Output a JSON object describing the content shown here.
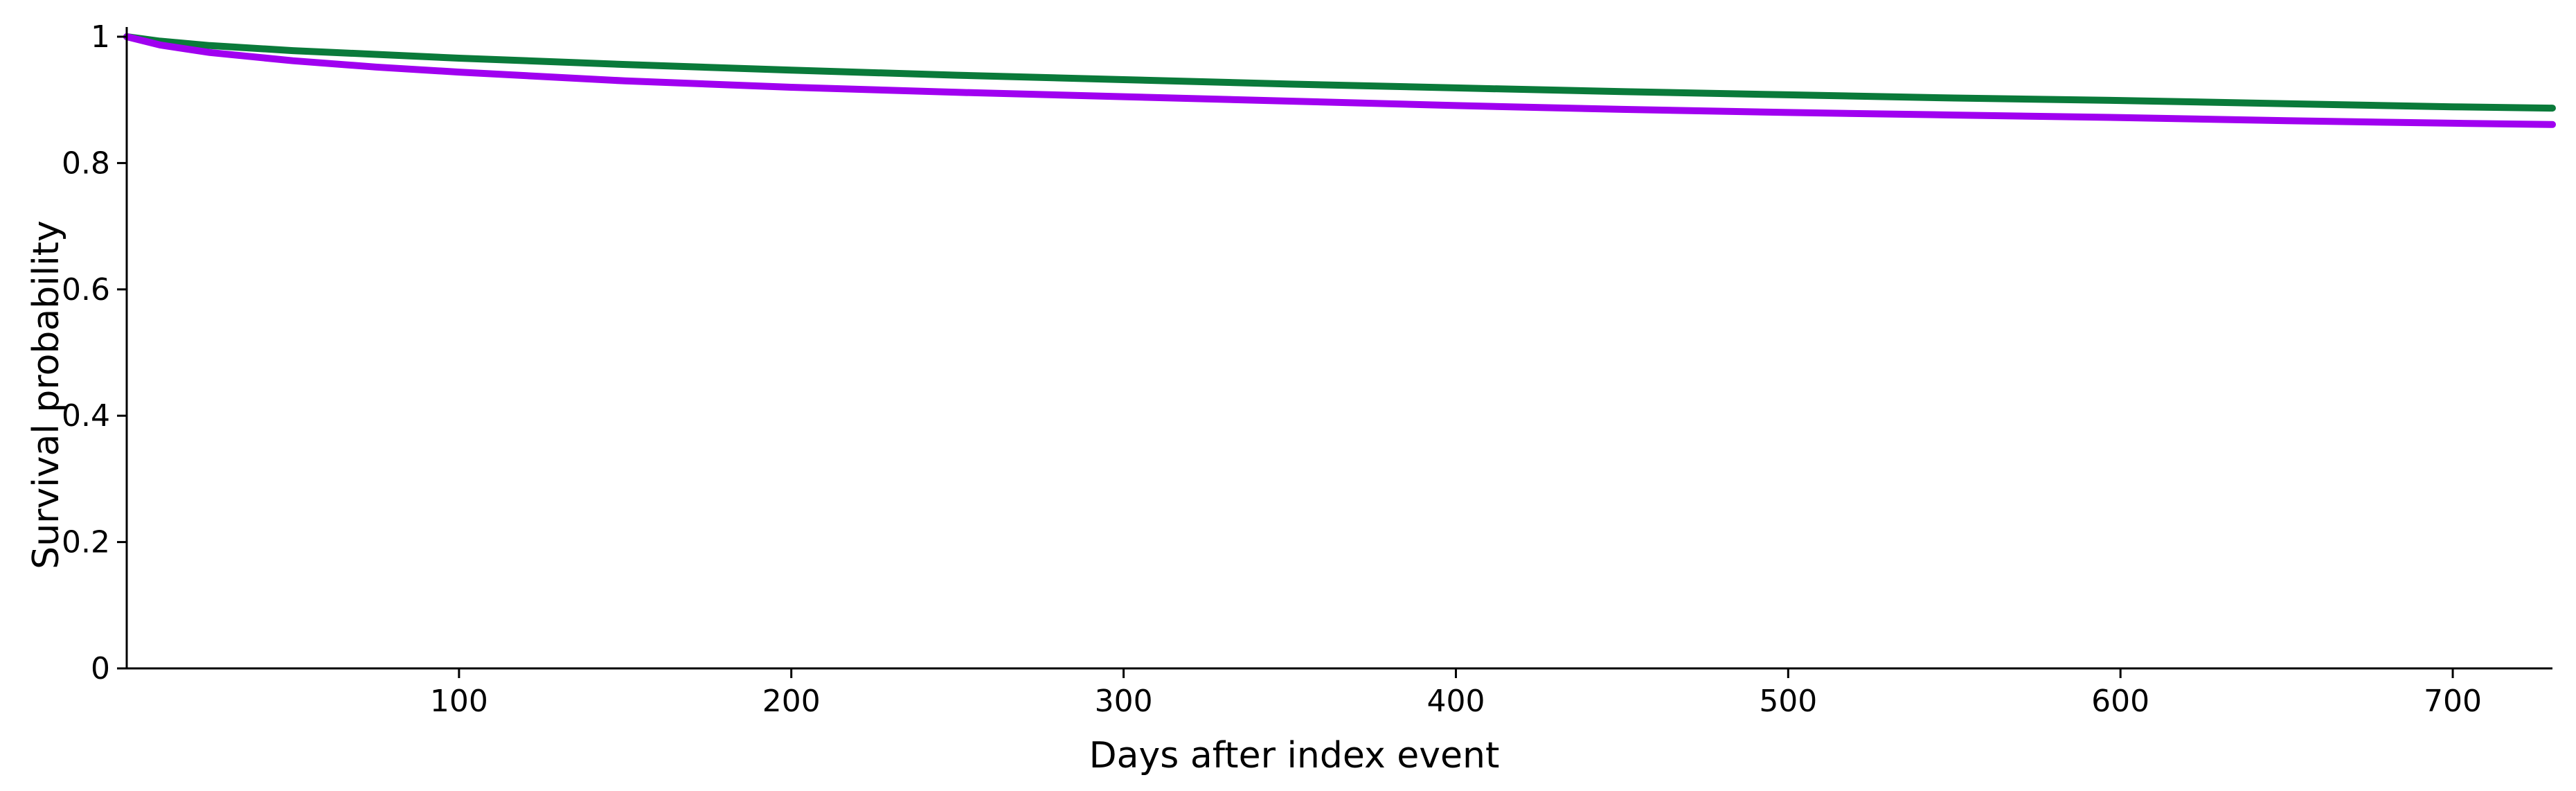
{
  "chart_data": {
    "type": "line",
    "title": "",
    "xlabel": "Days after index event",
    "ylabel": "Survival probability",
    "xlim": [
      0,
      730
    ],
    "ylim": [
      0,
      1
    ],
    "grid": false,
    "legend": "none",
    "x_ticks": [
      100,
      200,
      300,
      400,
      500,
      600,
      700
    ],
    "x_tick_labels": [
      "100",
      "200",
      "300",
      "400",
      "500",
      "600",
      "700"
    ],
    "y_ticks": [
      0,
      0.2,
      0.4,
      0.6,
      0.8,
      1
    ],
    "y_tick_labels": [
      "0",
      "0.2",
      "0.4",
      "0.6",
      "0.8",
      "1"
    ],
    "series": [
      {
        "color": "#0a7a3a",
        "x": [
          0,
          10,
          25,
          50,
          75,
          100,
          150,
          200,
          250,
          300,
          350,
          400,
          450,
          500,
          550,
          600,
          650,
          700,
          730
        ],
        "y": [
          1.0,
          0.993,
          0.986,
          0.978,
          0.972,
          0.966,
          0.956,
          0.947,
          0.939,
          0.932,
          0.925,
          0.919,
          0.913,
          0.908,
          0.903,
          0.899,
          0.894,
          0.889,
          0.887
        ]
      },
      {
        "color": "#a000f0",
        "x": [
          0,
          10,
          25,
          50,
          75,
          100,
          150,
          200,
          250,
          300,
          350,
          400,
          450,
          500,
          550,
          600,
          650,
          700,
          730
        ],
        "y": [
          1.0,
          0.987,
          0.975,
          0.962,
          0.952,
          0.944,
          0.93,
          0.92,
          0.912,
          0.905,
          0.898,
          0.891,
          0.885,
          0.88,
          0.876,
          0.872,
          0.867,
          0.863,
          0.861
        ]
      }
    ]
  }
}
